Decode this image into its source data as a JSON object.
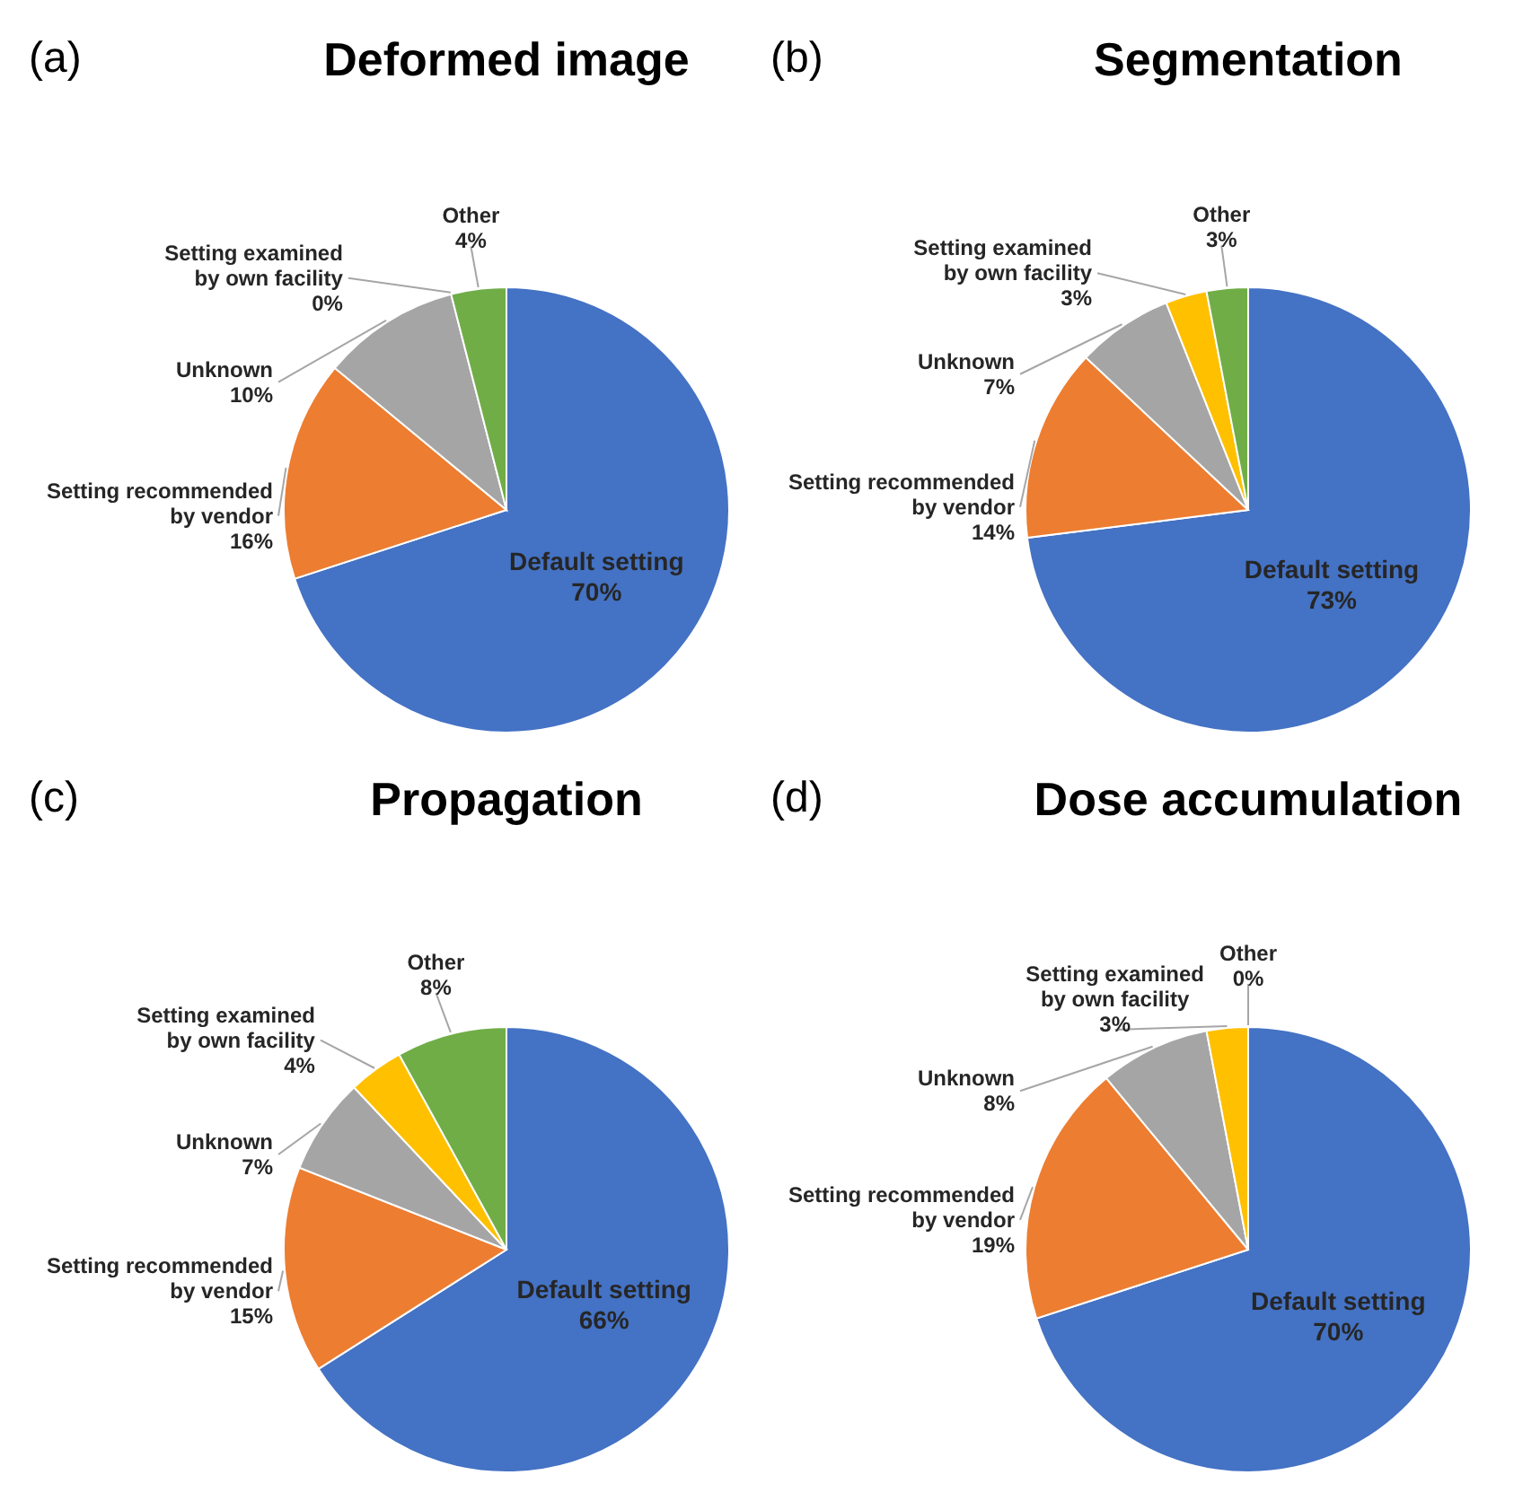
{
  "chart_data": [
    {
      "type": "pie",
      "title": "Deformed image",
      "annotations": [
        "(a)"
      ],
      "categories": [
        "Default setting",
        "Setting recommended by vendor",
        "Unknown",
        "Setting examined by own facility",
        "Other"
      ],
      "values": [
        70,
        16,
        10,
        0,
        4
      ],
      "colors": [
        "#4472c4",
        "#ed7d31",
        "#a5a5a5",
        "#ffc000",
        "#70ad47"
      ],
      "value_labels": [
        "70%",
        "16%",
        "10%",
        "0%",
        "4%"
      ]
    },
    {
      "type": "pie",
      "title": "Segmentation",
      "annotations": [
        "(b)"
      ],
      "categories": [
        "Default setting",
        "Setting recommended by vendor",
        "Unknown",
        "Setting examined by own facility",
        "Other"
      ],
      "values": [
        73,
        14,
        7,
        3,
        3
      ],
      "colors": [
        "#4472c4",
        "#ed7d31",
        "#a5a5a5",
        "#ffc000",
        "#70ad47"
      ],
      "value_labels": [
        "73%",
        "14%",
        "7%",
        "3%",
        "3%"
      ]
    },
    {
      "type": "pie",
      "title": "Propagation",
      "annotations": [
        "(c)"
      ],
      "categories": [
        "Default setting",
        "Setting recommended by vendor",
        "Unknown",
        "Setting examined by own facility",
        "Other"
      ],
      "values": [
        66,
        15,
        7,
        4,
        8
      ],
      "colors": [
        "#4472c4",
        "#ed7d31",
        "#a5a5a5",
        "#ffc000",
        "#70ad47"
      ],
      "value_labels": [
        "66%",
        "15%",
        "7%",
        "4%",
        "8%"
      ]
    },
    {
      "type": "pie",
      "title": "Dose accumulation",
      "annotations": [
        "(d)"
      ],
      "categories": [
        "Default setting",
        "Setting recommended by vendor",
        "Unknown",
        "Setting examined by own facility",
        "Other"
      ],
      "values": [
        70,
        19,
        8,
        3,
        0
      ],
      "colors": [
        "#4472c4",
        "#ed7d31",
        "#a5a5a5",
        "#ffc000",
        "#70ad47"
      ],
      "value_labels": [
        "70%",
        "19%",
        "8%",
        "3%",
        "0%"
      ]
    }
  ]
}
